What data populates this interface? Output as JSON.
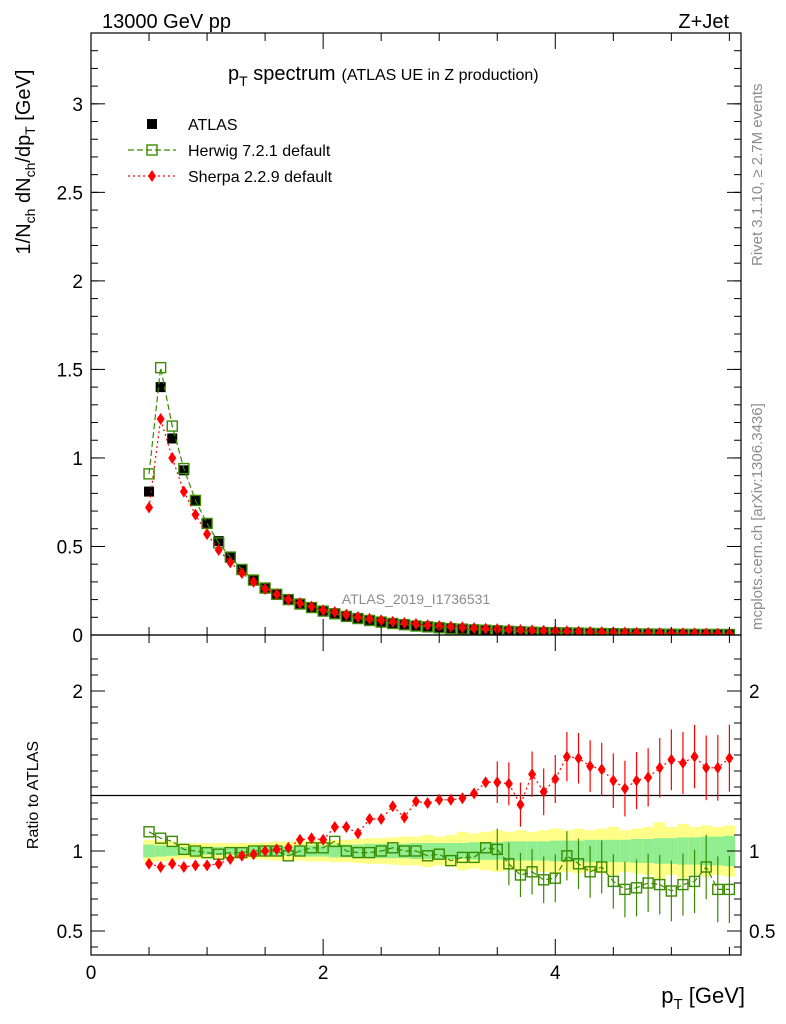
{
  "header": {
    "left": "13000 GeV pp",
    "right": "Z+Jet"
  },
  "title": {
    "main": "p",
    "main_sub": "T",
    "main_rest": " spectrum",
    "paren": "(ATLAS UE in Z production)"
  },
  "side_labels": {
    "rivet": "Rivet 3.1.10, ≥ 2.7M events",
    "mcplots": "mcplots.cern.ch [arXiv:1306.3436]"
  },
  "watermark": "ATLAS_2019_I1736531",
  "axes": {
    "ylabel_main": "1/N_ch dN_ch/dp_T [GeV]",
    "ylabel_ratio": "Ratio to ATLAS",
    "xlabel": "p_T [GeV]"
  },
  "legend": [
    {
      "label": "ATLAS",
      "color": "#000000",
      "marker": "filled-square"
    },
    {
      "label": "Herwig 7.2.1 default",
      "color": "#3a8a00",
      "marker": "open-square",
      "line": "dashed"
    },
    {
      "label": "Sherpa 2.2.9 default",
      "color": "#ff0000",
      "marker": "diamond",
      "line": "dotted"
    }
  ],
  "chart_data": [
    {
      "type": "scatter",
      "panel": "main",
      "xlim": [
        0,
        5.6
      ],
      "ylim": [
        0,
        3.4
      ],
      "yticks": [
        0,
        0.5,
        1,
        1.5,
        2,
        2.5,
        3
      ],
      "ytick_labels": [
        "0",
        "0.5",
        "1",
        "1.5",
        "2",
        "2.5",
        "3"
      ],
      "x": [
        0.5,
        0.6,
        0.7,
        0.8,
        0.9,
        1.0,
        1.1,
        1.2,
        1.3,
        1.4,
        1.5,
        1.6,
        1.7,
        1.8,
        1.9,
        2.0,
        2.1,
        2.2,
        2.3,
        2.4,
        2.5,
        2.6,
        2.7,
        2.8,
        2.9,
        3.0,
        3.1,
        3.2,
        3.3,
        3.4,
        3.5,
        3.6,
        3.7,
        3.8,
        3.9,
        4.0,
        4.1,
        4.2,
        4.3,
        4.4,
        4.5,
        4.6,
        4.7,
        4.8,
        4.9,
        5.0,
        5.1,
        5.2,
        5.3,
        5.4,
        5.5
      ],
      "series": [
        {
          "name": "ATLAS",
          "color": "#000000",
          "values": [
            0.81,
            1.4,
            1.11,
            0.93,
            0.76,
            0.63,
            0.53,
            0.44,
            0.37,
            0.31,
            0.265,
            0.23,
            0.2,
            0.175,
            0.155,
            0.135,
            0.12,
            0.105,
            0.093,
            0.082,
            0.073,
            0.065,
            0.058,
            0.051,
            0.046,
            0.041,
            0.037,
            0.033,
            0.03,
            0.027,
            0.024,
            0.022,
            0.02,
            0.018,
            0.016,
            0.015,
            0.013,
            0.012,
            0.011,
            0.01,
            0.009,
            0.008,
            0.0075,
            0.007,
            0.0063,
            0.0057,
            0.0052,
            0.0047,
            0.0043,
            0.004,
            0.0036
          ]
        },
        {
          "name": "Herwig 7.2.1 default",
          "color": "#3a8a00",
          "values": [
            0.91,
            1.51,
            1.18,
            0.94,
            0.76,
            0.63,
            0.52,
            0.44,
            0.37,
            0.31,
            0.265,
            0.23,
            0.2,
            0.175,
            0.155,
            0.135,
            0.12,
            0.105,
            0.093,
            0.082,
            0.073,
            0.065,
            0.058,
            0.051,
            0.046,
            0.041,
            0.036,
            0.033,
            0.029,
            0.027,
            0.024,
            0.021,
            0.018,
            0.016,
            0.014,
            0.013,
            0.012,
            0.011,
            0.0095,
            0.0085,
            0.0075,
            0.0065,
            0.006,
            0.0055,
            0.005,
            0.0045,
            0.004,
            0.0037,
            0.0034,
            0.0032,
            0.003
          ]
        },
        {
          "name": "Sherpa 2.2.9 default",
          "color": "#ff0000",
          "values": [
            0.72,
            1.22,
            1.0,
            0.81,
            0.68,
            0.57,
            0.48,
            0.41,
            0.35,
            0.3,
            0.26,
            0.23,
            0.2,
            0.18,
            0.16,
            0.14,
            0.13,
            0.115,
            0.102,
            0.092,
            0.083,
            0.075,
            0.068,
            0.062,
            0.056,
            0.051,
            0.047,
            0.043,
            0.039,
            0.036,
            0.033,
            0.031,
            0.028,
            0.026,
            0.024,
            0.022,
            0.021,
            0.019,
            0.018,
            0.016,
            0.015,
            0.014,
            0.013,
            0.012,
            0.011,
            0.0105,
            0.0098,
            0.009,
            0.0083,
            0.0077,
            0.007
          ]
        }
      ]
    },
    {
      "type": "scatter",
      "panel": "ratio",
      "xlim": [
        0,
        5.6
      ],
      "ylim": [
        0.35,
        2.35
      ],
      "yticks": [
        0.5,
        1,
        2
      ],
      "ytick_labels": [
        "0.5",
        "1",
        "2"
      ],
      "xticks": [
        0,
        2,
        4
      ],
      "xtick_labels": [
        "0",
        "2",
        "4"
      ],
      "x": [
        0.5,
        0.6,
        0.7,
        0.8,
        0.9,
        1.0,
        1.1,
        1.2,
        1.3,
        1.4,
        1.5,
        1.6,
        1.7,
        1.8,
        1.9,
        2.0,
        2.1,
        2.2,
        2.3,
        2.4,
        2.5,
        2.6,
        2.7,
        2.8,
        2.9,
        3.0,
        3.1,
        3.2,
        3.3,
        3.4,
        3.5,
        3.6,
        3.7,
        3.8,
        3.9,
        4.0,
        4.1,
        4.2,
        4.3,
        4.4,
        4.5,
        4.6,
        4.7,
        4.8,
        4.9,
        5.0,
        5.1,
        5.2,
        5.3,
        5.4,
        5.5
      ],
      "band_stat": [
        0.04,
        0.035,
        0.03,
        0.025,
        0.025,
        0.025,
        0.025,
        0.025,
        0.025,
        0.025,
        0.03,
        0.03,
        0.03,
        0.03,
        0.035,
        0.035,
        0.04,
        0.04,
        0.04,
        0.045,
        0.045,
        0.045,
        0.045,
        0.05,
        0.05,
        0.05,
        0.05,
        0.05,
        0.055,
        0.055,
        0.055,
        0.06,
        0.06,
        0.06,
        0.06,
        0.065,
        0.065,
        0.065,
        0.07,
        0.07,
        0.07,
        0.07,
        0.075,
        0.075,
        0.08,
        0.08,
        0.085,
        0.085,
        0.09,
        0.09,
        0.095
      ],
      "band_total": [
        0.07,
        0.065,
        0.06,
        0.05,
        0.05,
        0.05,
        0.05,
        0.05,
        0.05,
        0.05,
        0.055,
        0.06,
        0.06,
        0.06,
        0.065,
        0.065,
        0.07,
        0.07,
        0.075,
        0.08,
        0.08,
        0.085,
        0.09,
        0.09,
        0.1,
        0.09,
        0.1,
        0.12,
        0.11,
        0.12,
        0.13,
        0.12,
        0.13,
        0.12,
        0.13,
        0.14,
        0.13,
        0.14,
        0.13,
        0.14,
        0.15,
        0.13,
        0.14,
        0.15,
        0.18,
        0.15,
        0.17,
        0.15,
        0.16,
        0.15,
        0.16
      ],
      "series": [
        {
          "name": "Herwig 7.2.1 default",
          "color": "#3a8a00",
          "values": [
            1.12,
            1.08,
            1.06,
            1.01,
            1.0,
            0.99,
            0.98,
            0.99,
            0.99,
            1.0,
            1.0,
            1.0,
            0.97,
            1.0,
            1.02,
            1.02,
            1.06,
            1.0,
            0.99,
            0.99,
            1.0,
            1.02,
            1.0,
            1.0,
            0.97,
            0.98,
            0.94,
            0.96,
            0.96,
            1.02,
            1.01,
            0.92,
            0.85,
            0.87,
            0.82,
            0.83,
            0.97,
            0.92,
            0.87,
            0.9,
            0.81,
            0.76,
            0.77,
            0.8,
            0.79,
            0.75,
            0.79,
            0.81,
            0.9,
            0.76,
            0.76
          ]
        },
        {
          "name": "Sherpa 2.2.9 default",
          "color": "#ff0000",
          "values": [
            0.92,
            0.9,
            0.92,
            0.9,
            0.91,
            0.91,
            0.92,
            0.95,
            0.97,
            0.98,
            1.0,
            1.01,
            1.02,
            1.07,
            1.08,
            1.07,
            1.15,
            1.15,
            1.11,
            1.2,
            1.2,
            1.28,
            1.21,
            1.31,
            1.3,
            1.32,
            1.32,
            1.33,
            1.36,
            1.43,
            1.43,
            1.42,
            1.29,
            1.48,
            1.37,
            1.45,
            1.59,
            1.58,
            1.53,
            1.51,
            1.44,
            1.39,
            1.44,
            1.46,
            1.52,
            1.57,
            1.55,
            1.59,
            1.52,
            1.52,
            1.58
          ]
        }
      ]
    }
  ]
}
